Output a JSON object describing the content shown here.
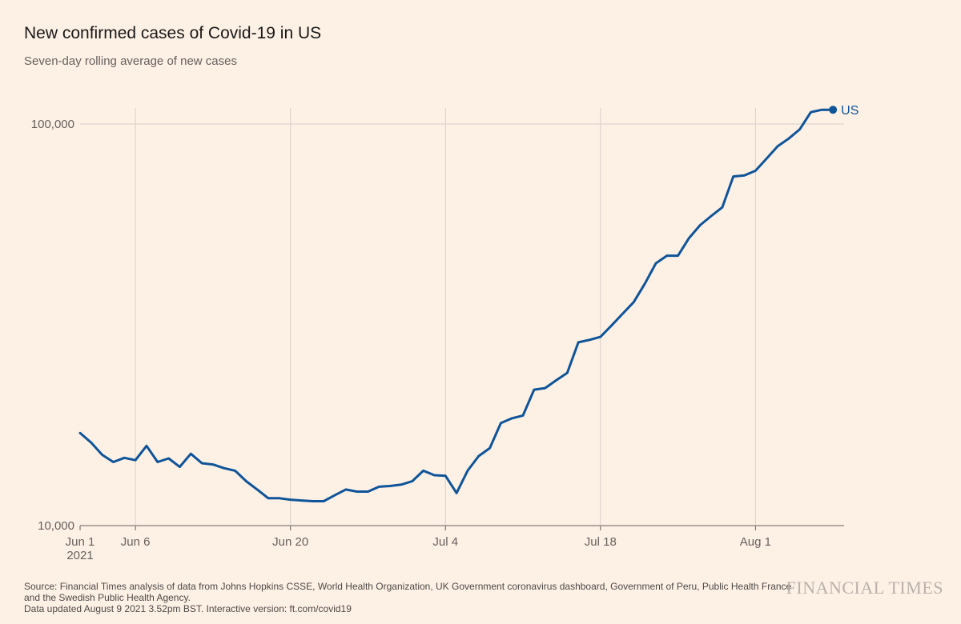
{
  "chart_data": {
    "type": "line",
    "title": "New confirmed cases of Covid-19 in US",
    "subtitle": "Seven-day rolling average of new cases",
    "xlabel": "",
    "ylabel": "",
    "y_scale": "log",
    "ylim": [
      10000,
      130000
    ],
    "x_range": [
      "2021-06-01",
      "2021-08-09"
    ],
    "y_ticks": [
      {
        "value": 10000,
        "label": "10,000"
      },
      {
        "value": 100000,
        "label": "100,000"
      }
    ],
    "x_ticks": [
      {
        "date": "2021-06-01",
        "label": "Jun 1",
        "sublabel": "2021"
      },
      {
        "date": "2021-06-06",
        "label": "Jun 6"
      },
      {
        "date": "2021-06-20",
        "label": "Jun 20"
      },
      {
        "date": "2021-07-04",
        "label": "Jul 4"
      },
      {
        "date": "2021-07-18",
        "label": "Jul 18"
      },
      {
        "date": "2021-08-01",
        "label": "Aug 1"
      }
    ],
    "grid": {
      "x": true,
      "y": true
    },
    "series": [
      {
        "name": "US",
        "color": "#0f5499",
        "points": [
          [
            "2021-06-01",
            17000
          ],
          [
            "2021-06-02",
            16100
          ],
          [
            "2021-06-03",
            15000
          ],
          [
            "2021-06-04",
            14400
          ],
          [
            "2021-06-05",
            14750
          ],
          [
            "2021-06-06",
            14550
          ],
          [
            "2021-06-07",
            15800
          ],
          [
            "2021-06-08",
            14400
          ],
          [
            "2021-06-09",
            14700
          ],
          [
            "2021-06-10",
            14000
          ],
          [
            "2021-06-11",
            15100
          ],
          [
            "2021-06-12",
            14300
          ],
          [
            "2021-06-13",
            14200
          ],
          [
            "2021-06-14",
            13900
          ],
          [
            "2021-06-15",
            13700
          ],
          [
            "2021-06-16",
            12900
          ],
          [
            "2021-06-17",
            12300
          ],
          [
            "2021-06-18",
            11700
          ],
          [
            "2021-06-19",
            11700
          ],
          [
            "2021-06-20",
            11600
          ],
          [
            "2021-06-21",
            11550
          ],
          [
            "2021-06-22",
            11500
          ],
          [
            "2021-06-23",
            11500
          ],
          [
            "2021-06-24",
            11900
          ],
          [
            "2021-06-25",
            12300
          ],
          [
            "2021-06-26",
            12150
          ],
          [
            "2021-06-27",
            12150
          ],
          [
            "2021-06-28",
            12500
          ],
          [
            "2021-06-29",
            12550
          ],
          [
            "2021-06-30",
            12650
          ],
          [
            "2021-07-01",
            12900
          ],
          [
            "2021-07-02",
            13700
          ],
          [
            "2021-07-03",
            13350
          ],
          [
            "2021-07-04",
            13300
          ],
          [
            "2021-07-05",
            12050
          ],
          [
            "2021-07-06",
            13700
          ],
          [
            "2021-07-07",
            14900
          ],
          [
            "2021-07-08",
            15600
          ],
          [
            "2021-07-09",
            18000
          ],
          [
            "2021-07-10",
            18500
          ],
          [
            "2021-07-11",
            18800
          ],
          [
            "2021-07-12",
            21800
          ],
          [
            "2021-07-13",
            22000
          ],
          [
            "2021-07-14",
            23000
          ],
          [
            "2021-07-15",
            24000
          ],
          [
            "2021-07-16",
            28600
          ],
          [
            "2021-07-17",
            29000
          ],
          [
            "2021-07-18",
            29500
          ],
          [
            "2021-07-19",
            31500
          ],
          [
            "2021-07-20",
            33700
          ],
          [
            "2021-07-21",
            36000
          ],
          [
            "2021-07-22",
            40000
          ],
          [
            "2021-07-23",
            45000
          ],
          [
            "2021-07-24",
            47000
          ],
          [
            "2021-07-25",
            47000
          ],
          [
            "2021-07-26",
            52000
          ],
          [
            "2021-07-27",
            56000
          ],
          [
            "2021-07-28",
            59000
          ],
          [
            "2021-07-29",
            62000
          ],
          [
            "2021-07-30",
            74000
          ],
          [
            "2021-07-31",
            74500
          ],
          [
            "2021-08-01",
            76500
          ],
          [
            "2021-08-02",
            82000
          ],
          [
            "2021-08-03",
            88000
          ],
          [
            "2021-08-04",
            92000
          ],
          [
            "2021-08-05",
            97000
          ],
          [
            "2021-08-06",
            107000
          ],
          [
            "2021-08-07",
            108500
          ],
          [
            "2021-08-08",
            108500
          ]
        ]
      }
    ],
    "end_label": "US"
  },
  "footer": {
    "source_line1": "Source: Financial Times analysis of data from Johns Hopkins CSSE, World Health Organization, UK Government coronavirus dashboard, Government of Peru, Public Health France",
    "source_line2": "and the Swedish Public Health Agency.",
    "updated": "Data updated August 9 2021 3.52pm BST. Interactive version: ft.com/covid19"
  },
  "brand": "FINANCIAL TIMES",
  "colors": {
    "background": "#fdf1e6",
    "line": "#0f5499",
    "grid": "#d9d0c8",
    "axis": "#66605c"
  }
}
